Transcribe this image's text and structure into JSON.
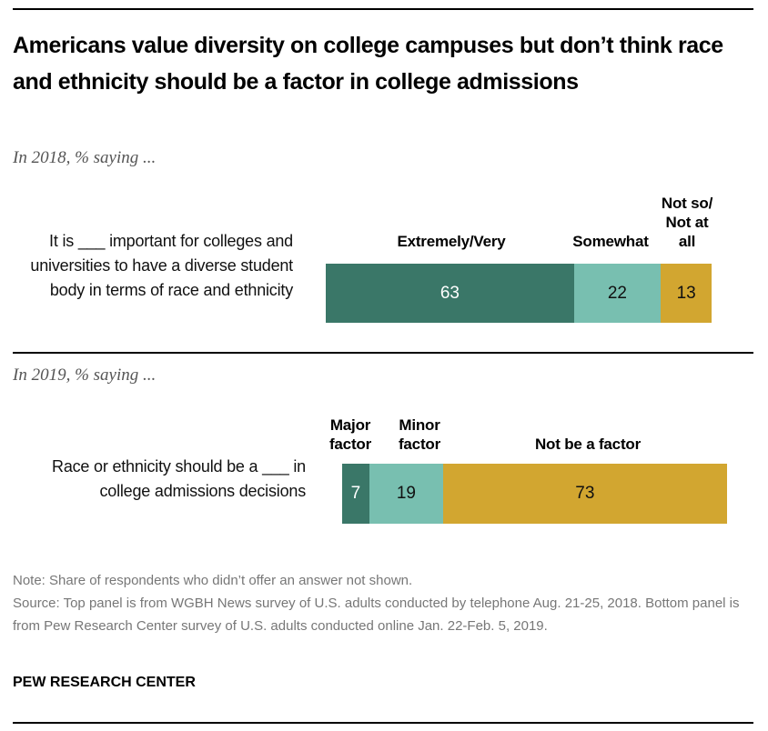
{
  "title": "Americans value diversity on college campuses but don’t think race and ethnicity should be a factor in college admissions",
  "chart_data": [
    {
      "type": "bar",
      "orientation": "horizontal-stacked",
      "subtitle": "In 2018, % saying ...",
      "categories": [
        "It is ___ important for colleges and universities to have a diverse student body in terms of race and ethnicity"
      ],
      "series": [
        {
          "name": "Extremely/Very",
          "values": [
            63
          ],
          "color": "#3a7768",
          "text_color": "#ffffff"
        },
        {
          "name": "Somewhat",
          "values": [
            22
          ],
          "color": "#78bfb0",
          "text_color": "#111111"
        },
        {
          "name": "Not so/ Not at all",
          "values": [
            13
          ],
          "color": "#d2a630",
          "text_color": "#111111"
        }
      ]
    },
    {
      "type": "bar",
      "orientation": "horizontal-stacked",
      "subtitle": "In 2019, % saying ...",
      "categories": [
        "Race or ethnicity should be a ___ in college admissions decisions"
      ],
      "series": [
        {
          "name": "Major factor",
          "values": [
            7
          ],
          "color": "#3a7768",
          "text_color": "#ffffff"
        },
        {
          "name": "Minor factor",
          "values": [
            19
          ],
          "color": "#78bfb0",
          "text_color": "#111111"
        },
        {
          "name": "Not be a factor",
          "values": [
            73
          ],
          "color": "#d2a630",
          "text_color": "#111111"
        }
      ]
    }
  ],
  "note": "Note: Share of respondents who didn’t offer an answer not shown.",
  "source": "Source: Top panel is from WGBH News survey of U.S. adults conducted by telephone Aug. 21-25, 2018. Bottom panel is from Pew Research Center survey of U.S. adults conducted online Jan. 22-Feb. 5, 2019.",
  "brand": "PEW RESEARCH CENTER"
}
